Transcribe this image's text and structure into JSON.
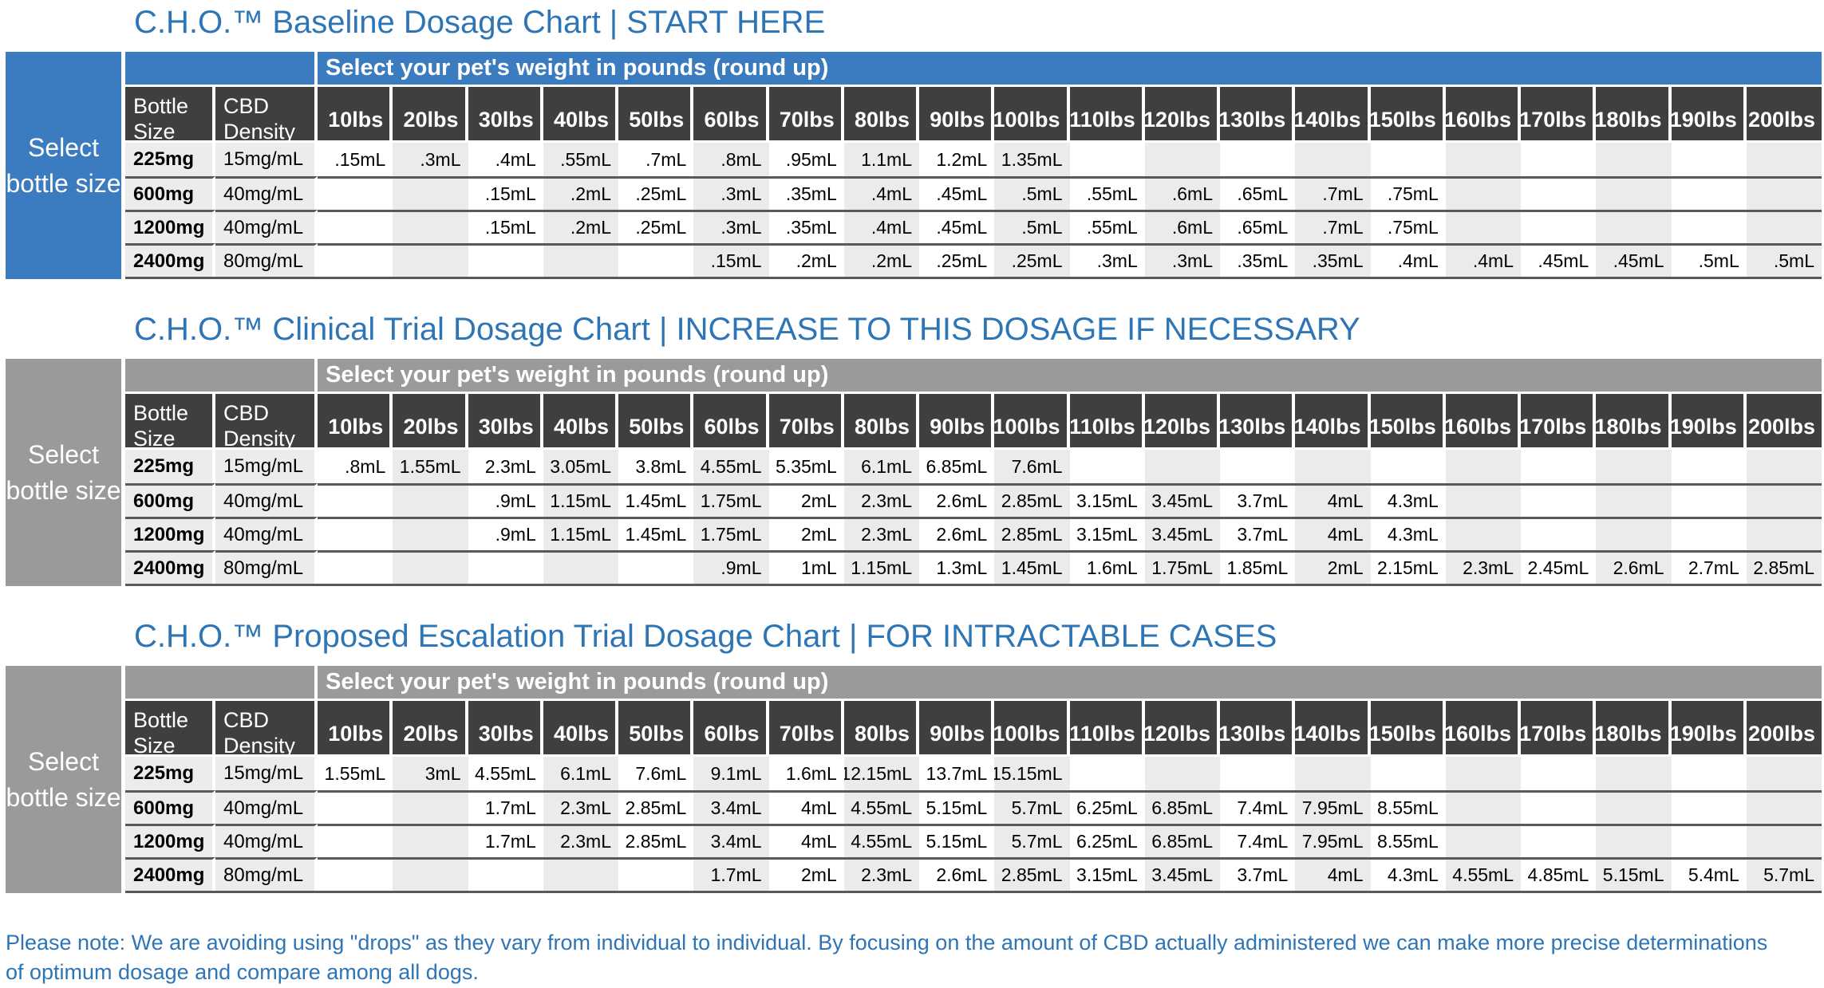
{
  "colors": {
    "title_blue": "#2e75b6",
    "baseline_accent": "#3b7cc0",
    "trial_accent": "#9a9a9a",
    "header_dark": "#3f3f3f",
    "cell_gray": "#ececec",
    "stripe_gray": "#ebebeb",
    "separator": "#595959"
  },
  "shared": {
    "weight_header": "Select your pet's weight in pounds (round up)",
    "sidebar_label": "Select bottle size",
    "col_bottle": "Bottle Size",
    "col_density": "CBD Density",
    "weights": [
      "10lbs",
      "20lbs",
      "30lbs",
      "40lbs",
      "50lbs",
      "60lbs",
      "70lbs",
      "80lbs",
      "90lbs",
      "100lbs",
      "110lbs",
      "120lbs",
      "130lbs",
      "140lbs",
      "150lbs",
      "160lbs",
      "170lbs",
      "180lbs",
      "190lbs",
      "200lbs"
    ]
  },
  "tables": [
    {
      "id": "baseline",
      "title": "C.H.O.™ Baseline Dosage Chart | START HERE",
      "accent": "#3b7cc0",
      "rows": [
        {
          "bottle": "225mg",
          "density": "15mg/mL",
          "values": [
            ".15mL",
            ".3mL",
            ".4mL",
            ".55mL",
            ".7mL",
            ".8mL",
            ".95mL",
            "1.1mL",
            "1.2mL",
            "1.35mL",
            "",
            "",
            "",
            "",
            "",
            "",
            "",
            "",
            "",
            ""
          ]
        },
        {
          "bottle": "600mg",
          "density": "40mg/mL",
          "values": [
            "",
            "",
            ".15mL",
            ".2mL",
            ".25mL",
            ".3mL",
            ".35mL",
            ".4mL",
            ".45mL",
            ".5mL",
            ".55mL",
            ".6mL",
            ".65mL",
            ".7mL",
            ".75mL",
            "",
            "",
            "",
            "",
            ""
          ]
        },
        {
          "bottle": "1200mg",
          "density": "40mg/mL",
          "values": [
            "",
            "",
            ".15mL",
            ".2mL",
            ".25mL",
            ".3mL",
            ".35mL",
            ".4mL",
            ".45mL",
            ".5mL",
            ".55mL",
            ".6mL",
            ".65mL",
            ".7mL",
            ".75mL",
            "",
            "",
            "",
            "",
            ""
          ]
        },
        {
          "bottle": "2400mg",
          "density": "80mg/mL",
          "values": [
            "",
            "",
            "",
            "",
            "",
            ".15mL",
            ".2mL",
            ".2mL",
            ".25mL",
            ".25mL",
            ".3mL",
            ".3mL",
            ".35mL",
            ".35mL",
            ".4mL",
            ".4mL",
            ".45mL",
            ".45mL",
            ".5mL",
            ".5mL"
          ]
        }
      ]
    },
    {
      "id": "clinical",
      "title": "C.H.O.™ Clinical Trial Dosage Chart | INCREASE TO THIS DOSAGE IF NECESSARY",
      "accent": "#9a9a9a",
      "rows": [
        {
          "bottle": "225mg",
          "density": "15mg/mL",
          "values": [
            ".8mL",
            "1.55mL",
            "2.3mL",
            "3.05mL",
            "3.8mL",
            "4.55mL",
            "5.35mL",
            "6.1mL",
            "6.85mL",
            "7.6mL",
            "",
            "",
            "",
            "",
            "",
            "",
            "",
            "",
            "",
            ""
          ]
        },
        {
          "bottle": "600mg",
          "density": "40mg/mL",
          "values": [
            "",
            "",
            ".9mL",
            "1.15mL",
            "1.45mL",
            "1.75mL",
            "2mL",
            "2.3mL",
            "2.6mL",
            "2.85mL",
            "3.15mL",
            "3.45mL",
            "3.7mL",
            "4mL",
            "4.3mL",
            "",
            "",
            "",
            "",
            ""
          ]
        },
        {
          "bottle": "1200mg",
          "density": "40mg/mL",
          "values": [
            "",
            "",
            ".9mL",
            "1.15mL",
            "1.45mL",
            "1.75mL",
            "2mL",
            "2.3mL",
            "2.6mL",
            "2.85mL",
            "3.15mL",
            "3.45mL",
            "3.7mL",
            "4mL",
            "4.3mL",
            "",
            "",
            "",
            "",
            ""
          ]
        },
        {
          "bottle": "2400mg",
          "density": "80mg/mL",
          "values": [
            "",
            "",
            "",
            "",
            "",
            ".9mL",
            "1mL",
            "1.15mL",
            "1.3mL",
            "1.45mL",
            "1.6mL",
            "1.75mL",
            "1.85mL",
            "2mL",
            "2.15mL",
            "2.3mL",
            "2.45mL",
            "2.6mL",
            "2.7mL",
            "2.85mL"
          ]
        }
      ]
    },
    {
      "id": "escalation",
      "title": "C.H.O.™ Proposed Escalation Trial Dosage Chart | FOR INTRACTABLE CASES",
      "accent": "#9a9a9a",
      "rows": [
        {
          "bottle": "225mg",
          "density": "15mg/mL",
          "values": [
            "1.55mL",
            "3mL",
            "4.55mL",
            "6.1mL",
            "7.6mL",
            "9.1mL",
            "1.6mL",
            "12.15mL",
            "13.7mL",
            "15.15mL",
            "",
            "",
            "",
            "",
            "",
            "",
            "",
            "",
            "",
            ""
          ]
        },
        {
          "bottle": "600mg",
          "density": "40mg/mL",
          "values": [
            "",
            "",
            "1.7mL",
            "2.3mL",
            "2.85mL",
            "3.4mL",
            "4mL",
            "4.55mL",
            "5.15mL",
            "5.7mL",
            "6.25mL",
            "6.85mL",
            "7.4mL",
            "7.95mL",
            "8.55mL",
            "",
            "",
            "",
            "",
            ""
          ]
        },
        {
          "bottle": "1200mg",
          "density": "40mg/mL",
          "values": [
            "",
            "",
            "1.7mL",
            "2.3mL",
            "2.85mL",
            "3.4mL",
            "4mL",
            "4.55mL",
            "5.15mL",
            "5.7mL",
            "6.25mL",
            "6.85mL",
            "7.4mL",
            "7.95mL",
            "8.55mL",
            "",
            "",
            "",
            "",
            ""
          ]
        },
        {
          "bottle": "2400mg",
          "density": "80mg/mL",
          "values": [
            "",
            "",
            "",
            "",
            "",
            "1.7mL",
            "2mL",
            "2.3mL",
            "2.6mL",
            "2.85mL",
            "3.15mL",
            "3.45mL",
            "3.7mL",
            "4mL",
            "4.3mL",
            "4.55mL",
            "4.85mL",
            "5.15mL",
            "5.4mL",
            "5.7mL"
          ]
        }
      ]
    }
  ],
  "footer": {
    "note": "Please note: We are avoiding using \"drops\" as they vary from individual to individual.  By focusing on the amount of CBD actually administered we can make more precise determinations of optimum dosage and compare among all dogs."
  }
}
